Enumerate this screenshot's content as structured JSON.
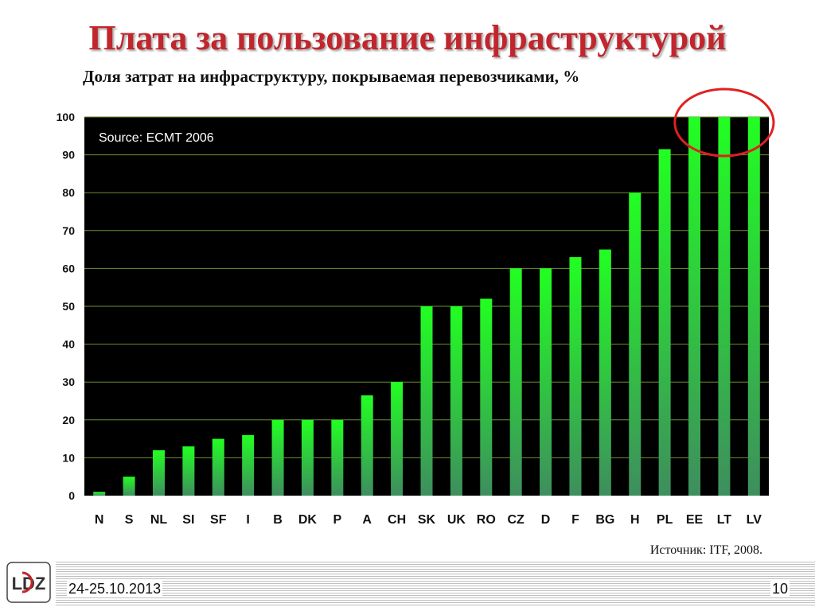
{
  "slide": {
    "title": "Плата за пользование инфраструктурой",
    "subtitle": "Доля затрат на инфраструктуру, покрываемая перевозчиками, %",
    "source_note": "Источник: ITF, 2008.",
    "footer_date": "24-25.10.2013",
    "page_number": "10",
    "logo_text": "LDZ"
  },
  "colors": {
    "title": "#c0262c",
    "plot_background": "#000000",
    "gridline": "#6f8f35",
    "bar_top": "#22ff22",
    "bar_bottom": "#3e8e5e",
    "highlight_circle": "#e02020"
  },
  "chart_data": {
    "type": "bar",
    "annotation": "Source: ECMT 2006",
    "categories": [
      "N",
      "S",
      "NL",
      "SI",
      "SF",
      "I",
      "B",
      "DK",
      "P",
      "A",
      "CH",
      "SK",
      "UK",
      "RO",
      "CZ",
      "D",
      "F",
      "BG",
      "H",
      "PL",
      "EE",
      "LT",
      "LV"
    ],
    "values": [
      1,
      5,
      12,
      13,
      15,
      16,
      20,
      20,
      20,
      26.5,
      30,
      50,
      50,
      52,
      60,
      60,
      63,
      65,
      80,
      91.5,
      100,
      100,
      100
    ],
    "ylim": [
      0,
      100
    ],
    "yticks": [
      0,
      10,
      20,
      30,
      40,
      50,
      60,
      70,
      80,
      90,
      100
    ],
    "grid": true,
    "highlight": {
      "shape": "circle",
      "categories": [
        "EE",
        "LT",
        "LV"
      ]
    }
  }
}
